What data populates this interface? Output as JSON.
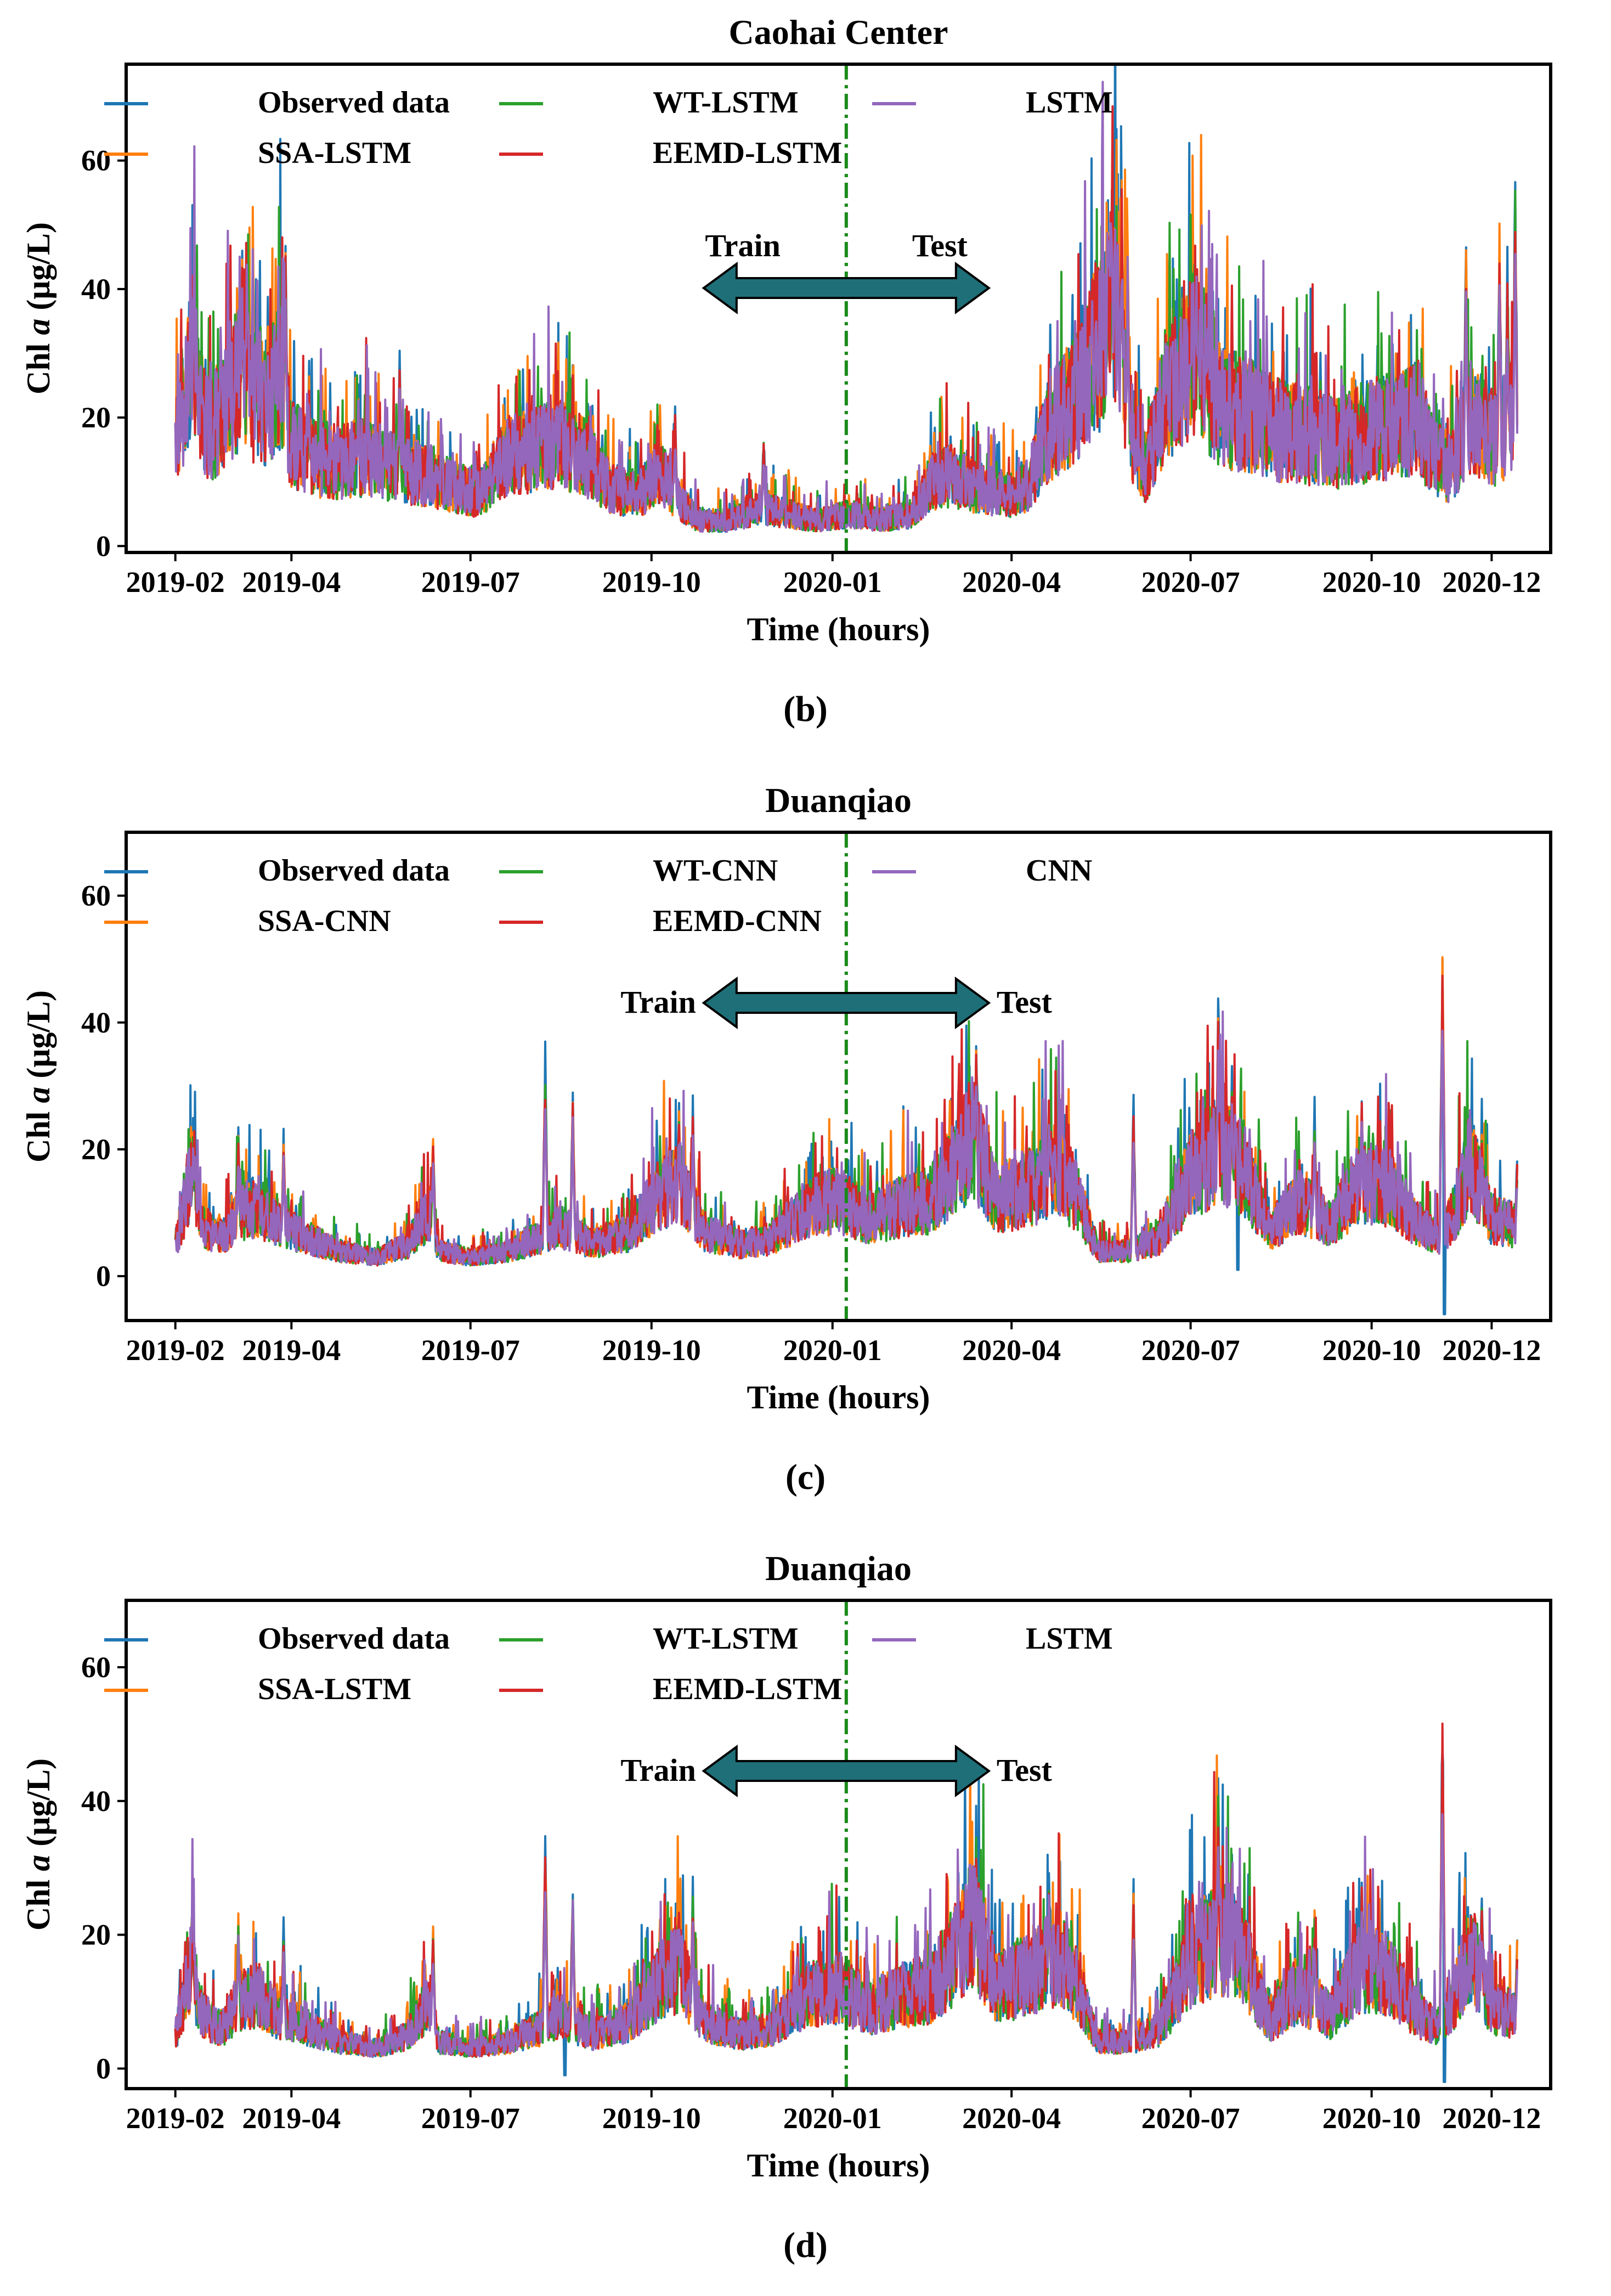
{
  "figure": {
    "captions": [
      "(b)",
      "(c)",
      "(d)"
    ]
  },
  "chart_data": [
    {
      "type": "line",
      "panel_label": "b",
      "title": "Caohai Center",
      "xlabel": "Time (hours)",
      "ylabel_parts": [
        "Chl ",
        "a",
        " (μg/L)"
      ],
      "x_ticks": [
        "2019-02",
        "2019-04",
        "2019-07",
        "2019-10",
        "2020-01",
        "2020-04",
        "2020-07",
        "2020-10",
        "2020-12"
      ],
      "x_tick_dates": [
        "2019-02-01",
        "2019-04-01",
        "2019-07-01",
        "2019-10-01",
        "2020-01-01",
        "2020-04-01",
        "2020-07-01",
        "2020-10-01",
        "2020-12-01"
      ],
      "xlim": [
        "2019-01-07",
        "2020-12-31"
      ],
      "y_ticks": [
        0,
        20,
        40,
        60
      ],
      "ylim": [
        -1,
        75
      ],
      "split_date": "2020-01-08",
      "annotation": {
        "left": "Train",
        "right": "Test"
      },
      "grid": false,
      "legend_position": "top-left",
      "series": [
        {
          "name": "Observed data",
          "color": "#1f77b4"
        },
        {
          "name": "SSA-LSTM",
          "color": "#ff7f0e"
        },
        {
          "name": "WT-LSTM",
          "color": "#2ca02c"
        },
        {
          "name": "EEMD-LSTM",
          "color": "#d62728"
        },
        {
          "name": "LSTM",
          "color": "#9467bd"
        }
      ],
      "profile": [
        [
          "2019-02-01",
          17
        ],
        [
          "2019-02-06",
          22
        ],
        [
          "2019-02-10",
          30
        ],
        [
          "2019-02-14",
          20
        ],
        [
          "2019-02-20",
          18
        ],
        [
          "2019-02-28",
          24
        ],
        [
          "2019-03-06",
          26
        ],
        [
          "2019-03-12",
          23
        ],
        [
          "2019-03-20",
          22
        ],
        [
          "2019-03-26",
          27
        ],
        [
          "2019-04-01",
          16
        ],
        [
          "2019-04-10",
          14
        ],
        [
          "2019-04-25",
          13
        ],
        [
          "2019-05-10",
          14
        ],
        [
          "2019-05-25",
          12
        ],
        [
          "2019-06-10",
          11
        ],
        [
          "2019-06-25",
          9
        ],
        [
          "2019-07-05",
          8
        ],
        [
          "2019-07-20",
          14
        ],
        [
          "2019-08-01",
          15
        ],
        [
          "2019-08-15",
          16
        ],
        [
          "2019-08-28",
          14
        ],
        [
          "2019-09-10",
          9
        ],
        [
          "2019-09-25",
          8
        ],
        [
          "2019-10-05",
          12
        ],
        [
          "2019-10-15",
          7
        ],
        [
          "2019-10-25",
          4
        ],
        [
          "2019-11-10",
          4
        ],
        [
          "2019-11-25",
          6
        ],
        [
          "2019-12-10",
          5
        ],
        [
          "2019-12-25",
          4
        ],
        [
          "2020-01-10",
          5
        ],
        [
          "2020-01-25",
          4
        ],
        [
          "2020-02-10",
          5
        ],
        [
          "2020-02-20",
          10
        ],
        [
          "2020-03-01",
          11
        ],
        [
          "2020-03-15",
          9
        ],
        [
          "2020-04-01",
          8
        ],
        [
          "2020-04-10",
          10
        ],
        [
          "2020-04-20",
          18
        ],
        [
          "2020-05-01",
          22
        ],
        [
          "2020-05-10",
          28
        ],
        [
          "2020-05-18",
          34
        ],
        [
          "2020-05-24",
          38
        ],
        [
          "2020-06-01",
          18
        ],
        [
          "2020-06-08",
          12
        ],
        [
          "2020-06-15",
          20
        ],
        [
          "2020-06-25",
          28
        ],
        [
          "2020-07-05",
          30
        ],
        [
          "2020-07-15",
          22
        ],
        [
          "2020-08-01",
          20
        ],
        [
          "2020-08-15",
          18
        ],
        [
          "2020-09-01",
          17
        ],
        [
          "2020-09-15",
          16
        ],
        [
          "2020-10-01",
          18
        ],
        [
          "2020-10-15",
          19
        ],
        [
          "2020-10-25",
          20
        ],
        [
          "2020-11-01",
          14
        ],
        [
          "2020-11-10",
          12
        ],
        [
          "2020-11-20",
          20
        ],
        [
          "2020-11-28",
          18
        ],
        [
          "2020-12-05",
          16
        ],
        [
          "2020-12-10",
          22
        ],
        [
          "2020-12-14",
          18
        ]
      ],
      "spikes": [
        [
          "2019-02-10",
          42
        ],
        [
          "2019-02-12",
          35
        ],
        [
          "2019-03-07",
          50
        ],
        [
          "2019-03-10",
          45
        ],
        [
          "2019-03-14",
          40
        ],
        [
          "2019-03-20",
          38
        ],
        [
          "2019-03-29",
          51
        ],
        [
          "2019-04-10",
          28
        ],
        [
          "2019-05-05",
          27
        ],
        [
          "2019-05-26",
          30
        ],
        [
          "2019-07-28",
          21
        ],
        [
          "2019-08-22",
          29
        ],
        [
          "2019-10-13",
          22
        ],
        [
          "2019-11-27",
          18
        ],
        [
          "2020-03-01",
          18
        ],
        [
          "2020-05-20",
          55
        ],
        [
          "2020-05-22",
          60
        ],
        [
          "2020-05-25",
          58
        ],
        [
          "2020-05-27",
          59
        ],
        [
          "2020-05-30",
          50
        ],
        [
          "2020-07-05",
          42
        ],
        [
          "2020-07-09",
          45
        ],
        [
          "2020-08-12",
          28
        ],
        [
          "2020-09-05",
          29
        ],
        [
          "2020-11-18",
          50
        ],
        [
          "2020-12-05",
          53
        ],
        [
          "2020-12-09",
          46
        ],
        [
          "2020-12-13",
          60
        ]
      ]
    },
    {
      "type": "line",
      "panel_label": "c",
      "title": "Duanqiao",
      "xlabel": "Time (hours)",
      "ylabel_parts": [
        "Chl ",
        "a",
        " (μg/L)"
      ],
      "x_ticks": [
        "2019-02",
        "2019-04",
        "2019-07",
        "2019-10",
        "2020-01",
        "2020-04",
        "2020-07",
        "2020-10",
        "2020-12"
      ],
      "x_tick_dates": [
        "2019-02-01",
        "2019-04-01",
        "2019-07-01",
        "2019-10-01",
        "2020-01-01",
        "2020-04-01",
        "2020-07-01",
        "2020-10-01",
        "2020-12-01"
      ],
      "xlim": [
        "2019-01-07",
        "2020-12-31"
      ],
      "y_ticks": [
        0,
        20,
        40,
        60
      ],
      "ylim": [
        -7,
        70
      ],
      "split_date": "2020-01-08",
      "annotation": {
        "left": "Train",
        "right": "Test"
      },
      "grid": false,
      "legend_position": "top-left",
      "series": [
        {
          "name": "Observed data",
          "color": "#1f77b4"
        },
        {
          "name": "SSA-CNN",
          "color": "#ff7f0e"
        },
        {
          "name": "WT-CNN",
          "color": "#2ca02c"
        },
        {
          "name": "EEMD-CNN",
          "color": "#d62728"
        },
        {
          "name": "CNN",
          "color": "#9467bd"
        }
      ],
      "profile": [
        [
          "2019-02-01",
          5
        ],
        [
          "2019-02-05",
          10
        ],
        [
          "2019-02-09",
          17
        ],
        [
          "2019-02-14",
          8
        ],
        [
          "2019-02-25",
          6
        ],
        [
          "2019-03-05",
          10
        ],
        [
          "2019-03-15",
          11
        ],
        [
          "2019-03-25",
          8
        ],
        [
          "2019-04-10",
          6
        ],
        [
          "2019-04-25",
          4
        ],
        [
          "2019-05-15",
          3
        ],
        [
          "2019-05-30",
          5
        ],
        [
          "2019-06-10",
          10
        ],
        [
          "2019-06-15",
          4
        ],
        [
          "2019-07-01",
          3
        ],
        [
          "2019-07-20",
          4
        ],
        [
          "2019-08-05",
          6
        ],
        [
          "2019-08-15",
          8
        ],
        [
          "2019-09-01",
          5
        ],
        [
          "2019-09-20",
          7
        ],
        [
          "2019-10-05",
          13
        ],
        [
          "2019-10-15",
          15
        ],
        [
          "2019-10-28",
          7
        ],
        [
          "2019-11-15",
          5
        ],
        [
          "2019-12-01",
          6
        ],
        [
          "2019-12-20",
          11
        ],
        [
          "2020-01-05",
          12
        ],
        [
          "2020-01-20",
          9
        ],
        [
          "2020-02-05",
          11
        ],
        [
          "2020-02-20",
          12
        ],
        [
          "2020-03-05",
          18
        ],
        [
          "2020-03-12",
          22
        ],
        [
          "2020-03-25",
          12
        ],
        [
          "2020-04-10",
          14
        ],
        [
          "2020-04-25",
          17
        ],
        [
          "2020-05-05",
          12
        ],
        [
          "2020-05-15",
          4
        ],
        [
          "2020-06-01",
          4
        ],
        [
          "2020-06-15",
          6
        ],
        [
          "2020-07-01",
          16
        ],
        [
          "2020-07-15",
          20
        ],
        [
          "2020-07-28",
          17
        ],
        [
          "2020-08-10",
          7
        ],
        [
          "2020-08-25",
          12
        ],
        [
          "2020-09-10",
          8
        ],
        [
          "2020-09-25",
          15
        ],
        [
          "2020-10-10",
          14
        ],
        [
          "2020-10-25",
          8
        ],
        [
          "2020-11-05",
          6
        ],
        [
          "2020-11-12",
          10
        ],
        [
          "2020-11-20",
          18
        ],
        [
          "2020-12-01",
          9
        ],
        [
          "2020-12-14",
          8
        ]
      ],
      "spikes": [
        [
          "2019-02-10",
          25
        ],
        [
          "2019-03-05",
          24
        ],
        [
          "2019-03-28",
          23
        ],
        [
          "2019-06-12",
          23
        ],
        [
          "2019-08-08",
          36
        ],
        [
          "2019-08-22",
          30
        ],
        [
          "2019-10-15",
          27
        ],
        [
          "2019-10-22",
          29
        ],
        [
          "2020-03-14",
          38
        ],
        [
          "2020-03-05",
          31
        ],
        [
          "2020-04-20",
          31
        ],
        [
          "2020-06-02",
          28
        ],
        [
          "2020-07-15",
          45
        ],
        [
          "2020-07-22",
          33
        ],
        [
          "2020-09-02",
          27
        ],
        [
          "2020-09-26",
          29
        ],
        [
          "2020-11-06",
          55
        ],
        [
          "2020-11-26",
          27
        ],
        [
          "2020-12-14",
          20
        ]
      ],
      "dips": [
        [
          "2020-11-07",
          -6
        ],
        [
          "2020-07-25",
          1
        ]
      ]
    },
    {
      "type": "line",
      "panel_label": "d",
      "title": "Duanqiao",
      "xlabel": "Time (hours)",
      "ylabel_parts": [
        "Chl ",
        "a",
        " (μg/L)"
      ],
      "x_ticks": [
        "2019-02",
        "2019-04",
        "2019-07",
        "2019-10",
        "2020-01",
        "2020-04",
        "2020-07",
        "2020-10",
        "2020-12"
      ],
      "x_tick_dates": [
        "2019-02-01",
        "2019-04-01",
        "2019-07-01",
        "2019-10-01",
        "2020-01-01",
        "2020-04-01",
        "2020-07-01",
        "2020-10-01",
        "2020-12-01"
      ],
      "xlim": [
        "2019-01-07",
        "2020-12-31"
      ],
      "y_ticks": [
        0,
        20,
        40,
        60
      ],
      "ylim": [
        -3,
        70
      ],
      "split_date": "2020-01-08",
      "annotation": {
        "left": "Train",
        "right": "Test"
      },
      "grid": false,
      "legend_position": "top-left",
      "series": [
        {
          "name": "Observed data",
          "color": "#1f77b4"
        },
        {
          "name": "SSA-LSTM",
          "color": "#ff7f0e"
        },
        {
          "name": "WT-LSTM",
          "color": "#2ca02c"
        },
        {
          "name": "EEMD-LSTM",
          "color": "#d62728"
        },
        {
          "name": "LSTM",
          "color": "#9467bd"
        }
      ],
      "profile": [
        [
          "2019-02-01",
          5
        ],
        [
          "2019-02-05",
          10
        ],
        [
          "2019-02-09",
          16
        ],
        [
          "2019-02-14",
          8
        ],
        [
          "2019-02-25",
          6
        ],
        [
          "2019-03-05",
          10
        ],
        [
          "2019-03-15",
          11
        ],
        [
          "2019-03-25",
          8
        ],
        [
          "2019-04-10",
          6
        ],
        [
          "2019-04-25",
          4
        ],
        [
          "2019-05-15",
          3
        ],
        [
          "2019-05-30",
          5
        ],
        [
          "2019-06-10",
          10
        ],
        [
          "2019-06-15",
          4
        ],
        [
          "2019-07-01",
          3
        ],
        [
          "2019-07-20",
          4
        ],
        [
          "2019-08-05",
          6
        ],
        [
          "2019-08-15",
          8
        ],
        [
          "2019-09-01",
          5
        ],
        [
          "2019-09-20",
          7
        ],
        [
          "2019-10-05",
          13
        ],
        [
          "2019-10-15",
          15
        ],
        [
          "2019-10-28",
          7
        ],
        [
          "2019-11-15",
          5
        ],
        [
          "2019-12-01",
          6
        ],
        [
          "2019-12-20",
          11
        ],
        [
          "2020-01-05",
          12
        ],
        [
          "2020-01-20",
          9
        ],
        [
          "2020-02-05",
          11
        ],
        [
          "2020-02-20",
          12
        ],
        [
          "2020-03-05",
          18
        ],
        [
          "2020-03-12",
          22
        ],
        [
          "2020-03-25",
          12
        ],
        [
          "2020-04-10",
          14
        ],
        [
          "2020-04-25",
          17
        ],
        [
          "2020-05-05",
          12
        ],
        [
          "2020-05-15",
          4
        ],
        [
          "2020-06-01",
          4
        ],
        [
          "2020-06-15",
          6
        ],
        [
          "2020-07-01",
          16
        ],
        [
          "2020-07-15",
          20
        ],
        [
          "2020-07-28",
          17
        ],
        [
          "2020-08-10",
          7
        ],
        [
          "2020-08-25",
          12
        ],
        [
          "2020-09-10",
          8
        ],
        [
          "2020-09-25",
          15
        ],
        [
          "2020-10-10",
          14
        ],
        [
          "2020-10-25",
          8
        ],
        [
          "2020-11-05",
          6
        ],
        [
          "2020-11-12",
          10
        ],
        [
          "2020-11-20",
          18
        ],
        [
          "2020-12-01",
          9
        ],
        [
          "2020-12-14",
          8
        ]
      ],
      "spikes": [
        [
          "2019-02-10",
          25
        ],
        [
          "2019-03-05",
          24
        ],
        [
          "2019-03-28",
          23
        ],
        [
          "2019-06-12",
          22
        ],
        [
          "2019-08-08",
          36
        ],
        [
          "2019-08-22",
          30
        ],
        [
          "2019-10-15",
          27
        ],
        [
          "2019-10-22",
          29
        ],
        [
          "2020-03-14",
          38
        ],
        [
          "2020-03-05",
          31
        ],
        [
          "2020-04-20",
          31
        ],
        [
          "2020-06-02",
          28
        ],
        [
          "2020-07-15",
          45
        ],
        [
          "2020-07-22",
          33
        ],
        [
          "2020-09-02",
          25
        ],
        [
          "2020-09-26",
          29
        ],
        [
          "2020-11-06",
          55
        ],
        [
          "2020-11-26",
          27
        ],
        [
          "2020-12-14",
          20
        ]
      ],
      "dips": [
        [
          "2020-11-07",
          -2
        ],
        [
          "2019-08-18",
          -1
        ]
      ]
    }
  ]
}
